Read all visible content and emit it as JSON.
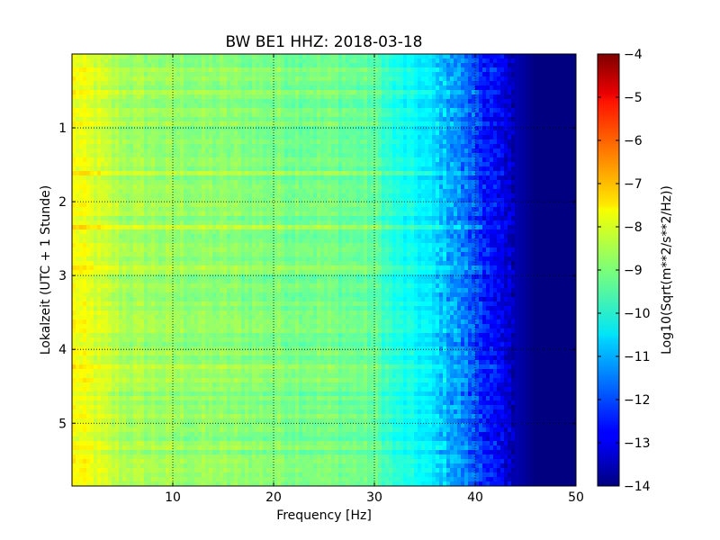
{
  "chart_data": {
    "type": "heatmap",
    "title": "BW BE1 HHZ: 2018-03-18",
    "xlabel": "Frequency [Hz]",
    "ylabel": "Lokalzeit (UTC + 1 Stunde)",
    "xlim": [
      0,
      50
    ],
    "ylim": [
      0,
      5.85
    ],
    "y_inverted": true,
    "x_ticks": [
      10,
      20,
      30,
      40,
      50
    ],
    "y_ticks": [
      1,
      2,
      3,
      4,
      5
    ],
    "grid": true,
    "colormap": "jet",
    "colorbar": {
      "label": "Log10(Sqrt(m**2/s**2/Hz))",
      "range": [
        -14,
        -4
      ],
      "ticks": [
        -4,
        -5,
        -6,
        -7,
        -8,
        -9,
        -10,
        -11,
        -12,
        -13,
        -14
      ]
    },
    "approx_level_profile": {
      "frequency_hz": [
        0,
        2,
        5,
        10,
        15,
        20,
        25,
        30,
        32,
        35,
        38,
        40,
        42,
        44,
        46,
        50
      ],
      "log10_amplitude": [
        -7.8,
        -8.1,
        -8.6,
        -8.8,
        -8.9,
        -9.0,
        -9.1,
        -9.3,
        -10.0,
        -10.4,
        -11.2,
        -12.0,
        -12.8,
        -13.5,
        -14,
        -14
      ]
    }
  }
}
